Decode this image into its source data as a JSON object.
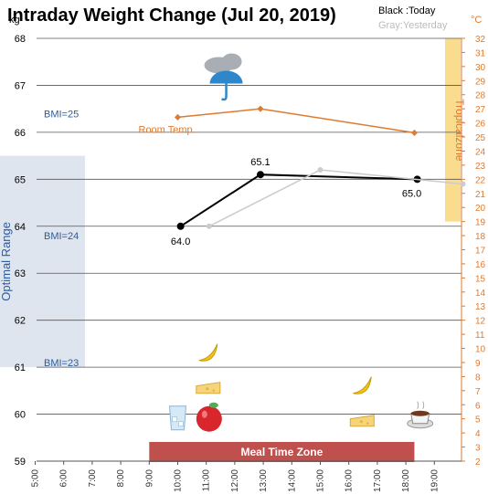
{
  "chart_data": {
    "type": "line",
    "title": "Intraday Weight Change (Jul 20, 2019)",
    "legend": {
      "today": "Black :Today",
      "yesterday": "Gray:Yesterday",
      "position": "top-right"
    },
    "y_left": {
      "unit": "kg",
      "range": [
        59,
        68
      ],
      "ticks": [
        59,
        60,
        61,
        62,
        63,
        64,
        65,
        66,
        67,
        68
      ]
    },
    "y_right": {
      "unit": "°C",
      "range": [
        2,
        32
      ],
      "ticks": [
        2,
        3,
        4,
        5,
        6,
        7,
        8,
        9,
        10,
        11,
        12,
        13,
        14,
        15,
        16,
        17,
        18,
        19,
        20,
        21,
        22,
        23,
        24,
        25,
        26,
        27,
        28,
        29,
        30,
        31,
        32
      ]
    },
    "x": {
      "range": [
        5,
        20
      ],
      "ticks": [
        "5:00",
        "6:00",
        "7:00",
        "8:00",
        "9:00",
        "10:00",
        "11:00",
        "12:00",
        "13:00",
        "14:00",
        "15:00",
        "16:00",
        "17:00",
        "18:00",
        "19:00"
      ]
    },
    "series": [
      {
        "name": "Today",
        "color": "#000000",
        "points": [
          {
            "x": 10.1,
            "y": 64.0,
            "label": "64.0"
          },
          {
            "x": 12.9,
            "y": 65.1,
            "label": "65.1"
          },
          {
            "x": 18.4,
            "y": 65.0,
            "label": "65.0"
          }
        ]
      },
      {
        "name": "Yesterday",
        "color": "#cccccc",
        "points": [
          {
            "x": 11.1,
            "y": 64.0
          },
          {
            "x": 15.0,
            "y": 65.2
          },
          {
            "x": 20.0,
            "y": 64.9
          }
        ]
      },
      {
        "name": "Room Temp.",
        "color": "#e07a2e",
        "axis": "right",
        "points": [
          {
            "x": 10.0,
            "y": 26.4
          },
          {
            "x": 12.9,
            "y": 27.0
          },
          {
            "x": 18.3,
            "y": 25.3
          }
        ]
      }
    ],
    "bands": {
      "optimal_range": {
        "label": "Optimal Range",
        "range": [
          61,
          65.5
        ],
        "color": "#dfe5ee"
      },
      "tropical_zone": {
        "label": "Tropicalzone",
        "range_celsius": [
          19,
          32
        ],
        "color": "#f9dc8d"
      }
    },
    "bmi_labels": [
      {
        "text": "BMI=25",
        "y": 66.4
      },
      {
        "text": "BMI=24",
        "y": 63.8
      },
      {
        "text": "BMI=23",
        "y": 61.1
      }
    ],
    "meal_zone": {
      "label": "Meal Time Zone",
      "x_range": [
        9.0,
        18.3
      ],
      "color": "#c0504d"
    },
    "icons": [
      {
        "name": "weather-icon",
        "x": 11.7,
        "y": 67.0
      },
      {
        "name": "banana-icon",
        "x": 11.1,
        "y": 61.3
      },
      {
        "name": "cake-icon",
        "x": 11.1,
        "y": 60.6
      },
      {
        "name": "water-glass-icon",
        "x": 10.0,
        "y": 59.9
      },
      {
        "name": "apple-icon",
        "x": 11.1,
        "y": 59.9
      },
      {
        "name": "banana-icon",
        "x": 16.5,
        "y": 60.6
      },
      {
        "name": "cake-icon",
        "x": 16.5,
        "y": 59.9
      },
      {
        "name": "coffee-icon",
        "x": 18.5,
        "y": 59.9
      }
    ],
    "grid": true
  }
}
